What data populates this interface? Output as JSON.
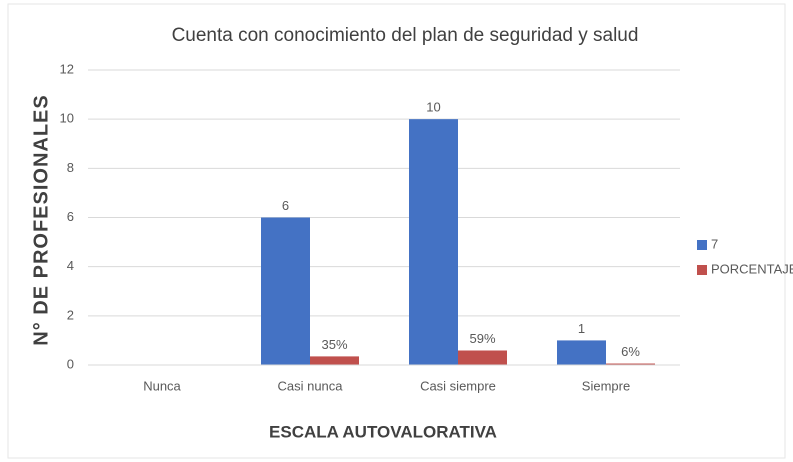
{
  "chart_data": {
    "type": "bar",
    "title": "Cuenta con conocimiento del plan de seguridad y salud",
    "x_label": "ESCALA AUTOVALORATIVA",
    "y_label": "N° DE PROFESIONALES",
    "categories": [
      "Nunca",
      "Casi nunca",
      "Casi siempre",
      "Siempre"
    ],
    "series": [
      {
        "name": "7",
        "color": "#4472c4",
        "values": [
          null,
          6,
          10,
          1
        ]
      },
      {
        "name": "PORCENTAJE",
        "color": "#c0504d",
        "values": [
          null,
          0.35,
          0.59,
          0.06
        ],
        "value_labels": [
          null,
          "35%",
          "59%",
          "6%"
        ]
      }
    ],
    "ylim": [
      0,
      12
    ],
    "yticks": [
      0,
      2,
      4,
      6,
      8,
      10,
      12
    ],
    "grid": true,
    "legend": "right"
  }
}
